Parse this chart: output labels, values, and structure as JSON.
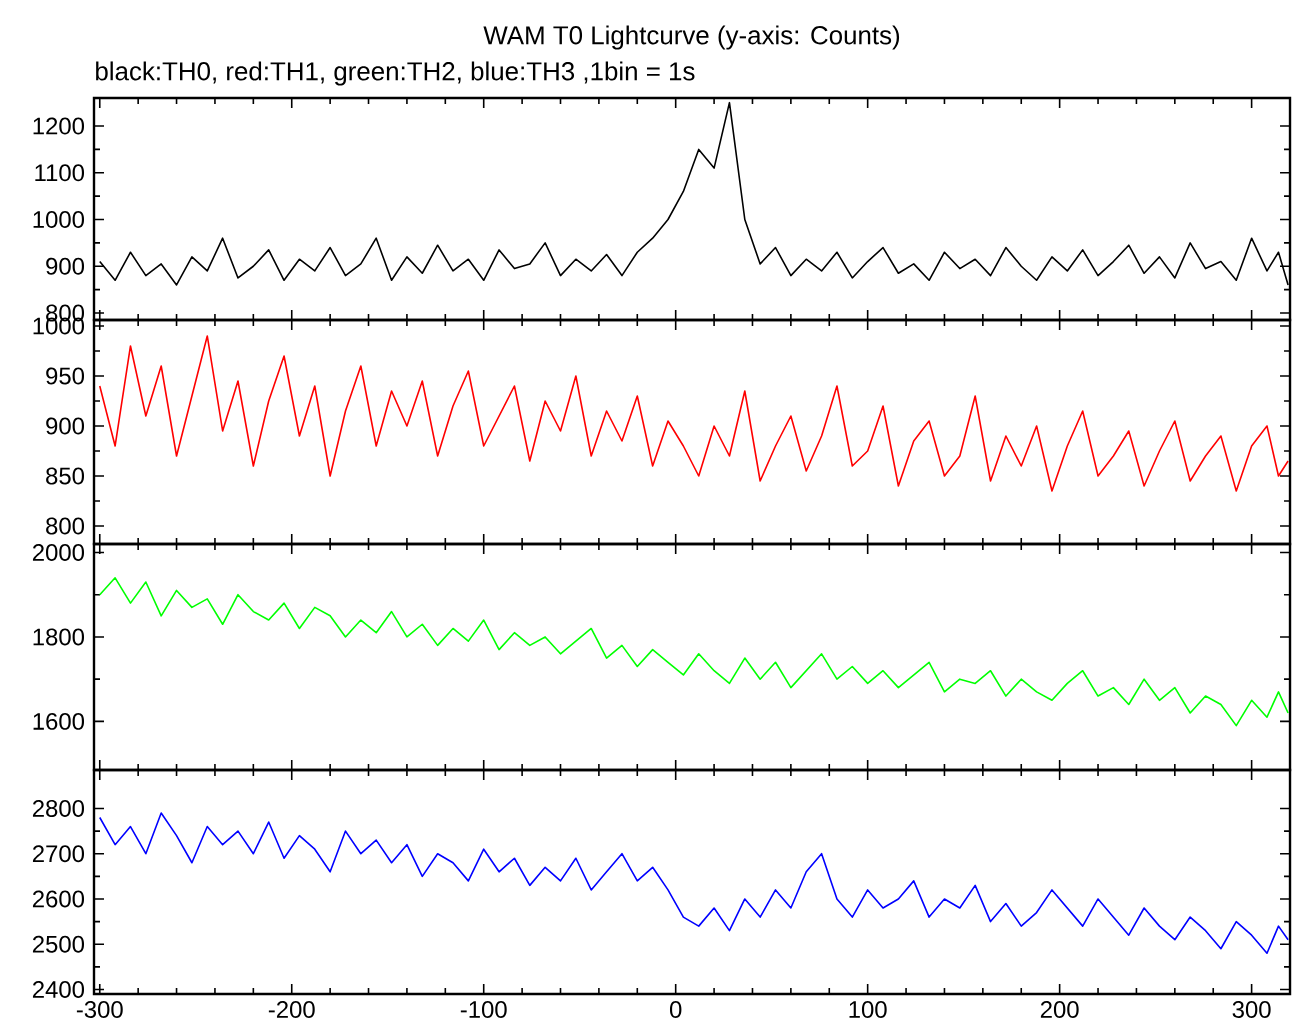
{
  "chart_data": [
    {
      "type": "line",
      "title": "WAM T0 Lightcurve (y-axis: Counts)",
      "subtitle": "black:TH0, red:TH1, green:TH2, blue:TH3 ,1bin = 1s",
      "x": [
        -300,
        -292,
        -284,
        -276,
        -268,
        -260,
        -252,
        -244,
        -236,
        -228,
        -220,
        -212,
        -204,
        -196,
        -188,
        -180,
        -172,
        -164,
        -156,
        -148,
        -140,
        -132,
        -124,
        -116,
        -108,
        -100,
        -92,
        -84,
        -76,
        -68,
        -60,
        -52,
        -44,
        -36,
        -28,
        -20,
        -12,
        -4,
        4,
        12,
        20,
        28,
        36,
        44,
        52,
        60,
        68,
        76,
        84,
        92,
        100,
        108,
        116,
        124,
        132,
        140,
        148,
        156,
        164,
        172,
        180,
        188,
        196,
        204,
        212,
        220,
        228,
        236,
        244,
        252,
        260,
        268,
        276,
        284,
        292,
        300,
        308,
        314,
        319
      ],
      "series": [
        {
          "color": "#000000",
          "values": [
            910,
            870,
            930,
            880,
            905,
            860,
            920,
            890,
            960,
            875,
            900,
            935,
            870,
            915,
            890,
            940,
            880,
            905,
            960,
            870,
            920,
            885,
            945,
            890,
            915,
            870,
            935,
            895,
            905,
            950,
            880,
            915,
            890,
            925,
            880,
            930,
            960,
            1000,
            1060,
            1150,
            1110,
            1250,
            1000,
            905,
            940,
            880,
            915,
            890,
            930,
            875,
            910,
            940,
            885,
            905,
            870,
            930,
            895,
            915,
            880,
            940,
            900,
            870,
            920,
            890,
            935,
            880,
            910,
            945,
            885,
            920,
            875,
            950,
            895,
            910,
            870,
            960,
            890,
            930,
            860
          ]
        }
      ],
      "xlim": [
        -303,
        320
      ],
      "xticks": [
        -300,
        -200,
        -100,
        0,
        100,
        200,
        300
      ],
      "ylim": [
        785,
        1260
      ],
      "yticks": [
        800,
        900,
        1000,
        1100,
        1200
      ],
      "tick_labels": "y"
    },
    {
      "type": "line",
      "x": [
        -300,
        -292,
        -284,
        -276,
        -268,
        -260,
        -252,
        -244,
        -236,
        -228,
        -220,
        -212,
        -204,
        -196,
        -188,
        -180,
        -172,
        -164,
        -156,
        -148,
        -140,
        -132,
        -124,
        -116,
        -108,
        -100,
        -92,
        -84,
        -76,
        -68,
        -60,
        -52,
        -44,
        -36,
        -28,
        -20,
        -12,
        -4,
        4,
        12,
        20,
        28,
        36,
        44,
        52,
        60,
        68,
        76,
        84,
        92,
        100,
        108,
        116,
        124,
        132,
        140,
        148,
        156,
        164,
        172,
        180,
        188,
        196,
        204,
        212,
        220,
        228,
        236,
        244,
        252,
        260,
        268,
        276,
        284,
        292,
        300,
        308,
        314,
        319
      ],
      "series": [
        {
          "color": "#ff0000",
          "values": [
            940,
            880,
            980,
            910,
            960,
            870,
            930,
            990,
            895,
            945,
            860,
            925,
            970,
            890,
            940,
            850,
            915,
            960,
            880,
            935,
            900,
            945,
            870,
            920,
            955,
            880,
            910,
            940,
            865,
            925,
            895,
            950,
            870,
            915,
            885,
            930,
            860,
            905,
            880,
            850,
            900,
            870,
            935,
            845,
            880,
            910,
            855,
            890,
            940,
            860,
            875,
            920,
            840,
            885,
            905,
            850,
            870,
            930,
            845,
            890,
            860,
            900,
            835,
            880,
            915,
            850,
            870,
            895,
            840,
            875,
            905,
            845,
            870,
            890,
            835,
            880,
            900,
            850,
            865
          ]
        }
      ],
      "xlim": [
        -303,
        320
      ],
      "xticks": [
        -300,
        -200,
        -100,
        0,
        100,
        200,
        300
      ],
      "ylim": [
        782,
        1006
      ],
      "yticks": [
        800,
        850,
        900,
        950,
        1000
      ],
      "tick_labels": "y"
    },
    {
      "type": "line",
      "x": [
        -300,
        -292,
        -284,
        -276,
        -268,
        -260,
        -252,
        -244,
        -236,
        -228,
        -220,
        -212,
        -204,
        -196,
        -188,
        -180,
        -172,
        -164,
        -156,
        -148,
        -140,
        -132,
        -124,
        -116,
        -108,
        -100,
        -92,
        -84,
        -76,
        -68,
        -60,
        -52,
        -44,
        -36,
        -28,
        -20,
        -12,
        -4,
        4,
        12,
        20,
        28,
        36,
        44,
        52,
        60,
        68,
        76,
        84,
        92,
        100,
        108,
        116,
        124,
        132,
        140,
        148,
        156,
        164,
        172,
        180,
        188,
        196,
        204,
        212,
        220,
        228,
        236,
        244,
        252,
        260,
        268,
        276,
        284,
        292,
        300,
        308,
        314,
        319
      ],
      "series": [
        {
          "color": "#00ff00",
          "values": [
            1900,
            1940,
            1880,
            1930,
            1850,
            1910,
            1870,
            1890,
            1830,
            1900,
            1860,
            1840,
            1880,
            1820,
            1870,
            1850,
            1800,
            1840,
            1810,
            1860,
            1800,
            1830,
            1780,
            1820,
            1790,
            1840,
            1770,
            1810,
            1780,
            1800,
            1760,
            1790,
            1820,
            1750,
            1780,
            1730,
            1770,
            1740,
            1710,
            1760,
            1720,
            1690,
            1750,
            1700,
            1740,
            1680,
            1720,
            1760,
            1700,
            1730,
            1690,
            1720,
            1680,
            1710,
            1740,
            1670,
            1700,
            1690,
            1720,
            1660,
            1700,
            1670,
            1650,
            1690,
            1720,
            1660,
            1680,
            1640,
            1700,
            1650,
            1680,
            1620,
            1660,
            1640,
            1590,
            1650,
            1610,
            1670,
            1620
          ]
        }
      ],
      "xlim": [
        -303,
        320
      ],
      "xticks": [
        -300,
        -200,
        -100,
        0,
        100,
        200,
        300
      ],
      "ylim": [
        1485,
        2020
      ],
      "yticks": [
        1600,
        1800,
        2000
      ],
      "tick_labels": "y"
    },
    {
      "type": "line",
      "x": [
        -300,
        -292,
        -284,
        -276,
        -268,
        -260,
        -252,
        -244,
        -236,
        -228,
        -220,
        -212,
        -204,
        -196,
        -188,
        -180,
        -172,
        -164,
        -156,
        -148,
        -140,
        -132,
        -124,
        -116,
        -108,
        -100,
        -92,
        -84,
        -76,
        -68,
        -60,
        -52,
        -44,
        -36,
        -28,
        -20,
        -12,
        -4,
        4,
        12,
        20,
        28,
        36,
        44,
        52,
        60,
        68,
        76,
        84,
        92,
        100,
        108,
        116,
        124,
        132,
        140,
        148,
        156,
        164,
        172,
        180,
        188,
        196,
        204,
        212,
        220,
        228,
        236,
        244,
        252,
        260,
        268,
        276,
        284,
        292,
        300,
        308,
        314,
        319
      ],
      "series": [
        {
          "color": "#0000ff",
          "values": [
            2780,
            2720,
            2760,
            2700,
            2790,
            2740,
            2680,
            2760,
            2720,
            2750,
            2700,
            2770,
            2690,
            2740,
            2710,
            2660,
            2750,
            2700,
            2730,
            2680,
            2720,
            2650,
            2700,
            2680,
            2640,
            2710,
            2660,
            2690,
            2630,
            2670,
            2640,
            2690,
            2620,
            2660,
            2700,
            2640,
            2670,
            2620,
            2560,
            2540,
            2580,
            2530,
            2600,
            2560,
            2620,
            2580,
            2660,
            2700,
            2600,
            2560,
            2620,
            2580,
            2600,
            2640,
            2560,
            2600,
            2580,
            2630,
            2550,
            2590,
            2540,
            2570,
            2620,
            2580,
            2540,
            2600,
            2560,
            2520,
            2580,
            2540,
            2510,
            2560,
            2530,
            2490,
            2550,
            2520,
            2480,
            2540,
            2510
          ]
        }
      ],
      "xlim": [
        -303,
        320
      ],
      "xticks": [
        -300,
        -200,
        -100,
        0,
        100,
        200,
        300
      ],
      "ylim": [
        2390,
        2885
      ],
      "yticks": [
        2400,
        2500,
        2600,
        2700,
        2800
      ]
    }
  ]
}
